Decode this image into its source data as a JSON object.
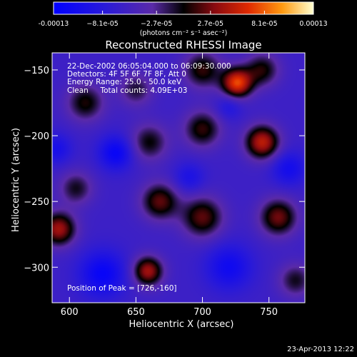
{
  "chart_data": {
    "type": "heatmap",
    "title": "Reconstructed RHESSI Image",
    "xlabel": "Heliocentric X (arcsec)",
    "ylabel": "Heliocentric Y (arcsec)",
    "xlim": [
      587,
      777
    ],
    "ylim": [
      -327,
      -137
    ],
    "x_ticks": [
      600,
      650,
      700,
      750
    ],
    "y_ticks": [
      -150,
      -200,
      -250,
      -300
    ],
    "colorbar": {
      "unit": "(photons cm⁻² s⁻¹ asec⁻²)",
      "tick_labels": [
        "-0.00013",
        "−8.1e-05",
        "−2.7e-05",
        "2.7e-05",
        "8.1e-05",
        "0.00013"
      ],
      "tick_values": [
        -0.00013,
        -8.1e-05,
        -2.7e-05,
        2.7e-05,
        8.1e-05,
        0.00013
      ],
      "range": [
        -0.00013,
        0.00013
      ]
    },
    "annotations": {
      "time": "22-Dec-2002 06:05:04.000 to 06:09:30.000",
      "detectors": "Detectors: 4F 5F 6F 7F 8F, Att 0",
      "energy": "Energy Range: 25.0 - 50.0 keV",
      "clean": "Clean     Total counts: 4.09E+03",
      "peak": "Position of Peak = [726,-160]"
    },
    "peak": [
      726,
      -160
    ],
    "sources": [
      {
        "x": 726,
        "y": -160,
        "amp": 0.00013,
        "sigma": 8
      },
      {
        "x": 745,
        "y": -205,
        "amp": 0.00011,
        "sigma": 9
      },
      {
        "x": 659,
        "y": -303,
        "amp": 0.0001,
        "sigma": 8
      },
      {
        "x": 592,
        "y": -271,
        "amp": 0.0001,
        "sigma": 9
      },
      {
        "x": 668,
        "y": -250,
        "amp": 8e-05,
        "sigma": 10
      },
      {
        "x": 700,
        "y": -262,
        "amp": 8e-05,
        "sigma": 11
      },
      {
        "x": 757,
        "y": -262,
        "amp": 8.5e-05,
        "sigma": 10
      },
      {
        "x": 700,
        "y": -195,
        "amp": 7e-05,
        "sigma": 10
      },
      {
        "x": 660,
        "y": -205,
        "amp": 6e-05,
        "sigma": 10
      },
      {
        "x": 612,
        "y": -175,
        "amp": 6.5e-05,
        "sigma": 10
      },
      {
        "x": 605,
        "y": -240,
        "amp": 5.5e-05,
        "sigma": 9
      },
      {
        "x": 700,
        "y": -150,
        "amp": 7e-05,
        "sigma": 10
      },
      {
        "x": 745,
        "y": -150,
        "amp": 6.5e-05,
        "sigma": 9
      },
      {
        "x": 770,
        "y": -310,
        "amp": 5.5e-05,
        "sigma": 9
      },
      {
        "x": 650,
        "y": -165,
        "amp": 5e-05,
        "sigma": 9
      },
      {
        "x": 625,
        "y": -305,
        "amp": -6e-05,
        "sigma": 12
      },
      {
        "x": 635,
        "y": -213,
        "amp": -6e-05,
        "sigma": 9
      },
      {
        "x": 720,
        "y": -300,
        "amp": -5e-05,
        "sigma": 12
      },
      {
        "x": 765,
        "y": -225,
        "amp": -4.5e-05,
        "sigma": 9
      },
      {
        "x": 590,
        "y": -210,
        "amp": -4e-05,
        "sigma": 8
      },
      {
        "x": 690,
        "y": -232,
        "amp": -3.5e-05,
        "sigma": 8
      },
      {
        "x": 720,
        "y": -178,
        "amp": -3e-05,
        "sigma": 7
      }
    ]
  },
  "footer": {
    "timestamp": "23-Apr-2013 12:22"
  }
}
